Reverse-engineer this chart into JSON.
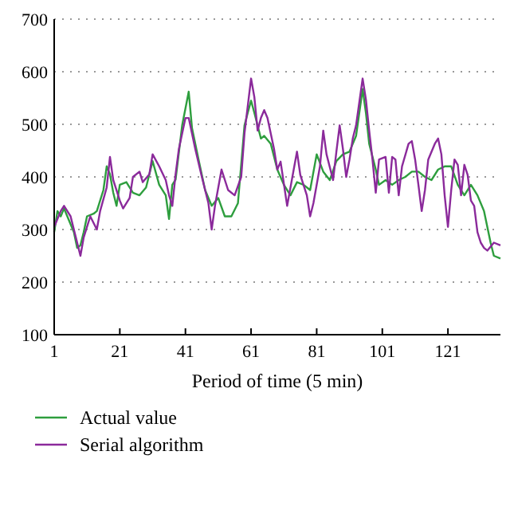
{
  "chart_data": {
    "type": "line",
    "xlabel": "Period of time (5 min)",
    "xlim": [
      1,
      137
    ],
    "xticks": [
      1,
      21,
      41,
      61,
      81,
      101,
      121
    ],
    "ylim": [
      100,
      700
    ],
    "yticks": [
      100,
      200,
      300,
      400,
      500,
      600,
      700
    ],
    "grid": "y",
    "legend": "bottom",
    "series": [
      {
        "name": "Actual value",
        "color": "#2e9e3e",
        "x": [
          1,
          2,
          3,
          4,
          5,
          7,
          8,
          9,
          10,
          11,
          13,
          14,
          16,
          17,
          18,
          19,
          20,
          21,
          23,
          25,
          27,
          29,
          31,
          33,
          35,
          36,
          37,
          38,
          40,
          42,
          43,
          45,
          47,
          49,
          51,
          53,
          55,
          57,
          59,
          60,
          61,
          62,
          64,
          65,
          67,
          69,
          71,
          73,
          75,
          77,
          79,
          81,
          83,
          85,
          87,
          89,
          91,
          93,
          95,
          96,
          97,
          99,
          100,
          102,
          104,
          106,
          108,
          110,
          112,
          114,
          116,
          118,
          120,
          122,
          124,
          126,
          128,
          130,
          132,
          134,
          135,
          137
        ],
        "values": [
          295,
          335,
          325,
          340,
          325,
          295,
          265,
          270,
          295,
          325,
          330,
          335,
          375,
          420,
          405,
          370,
          345,
          385,
          390,
          370,
          365,
          380,
          430,
          385,
          365,
          320,
          385,
          395,
          498,
          562,
          493,
          433,
          375,
          345,
          360,
          325,
          325,
          350,
          498,
          522,
          545,
          522,
          473,
          478,
          463,
          414,
          385,
          365,
          390,
          385,
          375,
          443,
          410,
          394,
          430,
          443,
          448,
          478,
          567,
          522,
          463,
          414,
          385,
          394,
          385,
          394,
          400,
          410,
          410,
          400,
          394,
          414,
          420,
          420,
          385,
          365,
          385,
          365,
          335,
          275,
          250,
          245
        ]
      },
      {
        "name": "Serial algorithm",
        "color": "#8b2a9b",
        "x": [
          1,
          3,
          4,
          6,
          8,
          9,
          10,
          12,
          14,
          15,
          17,
          18,
          19,
          21,
          22,
          24,
          25,
          27,
          28,
          30,
          31,
          33,
          35,
          36,
          37,
          38,
          39,
          41,
          42,
          44,
          46,
          48,
          49,
          50,
          52,
          54,
          56,
          58,
          59,
          61,
          62,
          63,
          64,
          65,
          66,
          68,
          69,
          70,
          72,
          74,
          75,
          76,
          78,
          79,
          80,
          82,
          83,
          84,
          86,
          87,
          88,
          89,
          90,
          91,
          92,
          93,
          95,
          96,
          97,
          98,
          99,
          100,
          102,
          103,
          104,
          105,
          106,
          107,
          109,
          110,
          111,
          112,
          113,
          114,
          115,
          117,
          118,
          119,
          120,
          121,
          122,
          123,
          124,
          125,
          126,
          127,
          128,
          129,
          130,
          131,
          132,
          133,
          135,
          137
        ],
        "values": [
          305,
          335,
          345,
          325,
          275,
          250,
          285,
          325,
          300,
          335,
          380,
          438,
          394,
          355,
          340,
          360,
          400,
          410,
          390,
          405,
          443,
          420,
          394,
          365,
          345,
          405,
          453,
          512,
          512,
          453,
          400,
          350,
          300,
          345,
          414,
          375,
          365,
          400,
          483,
          587,
          552,
          488,
          512,
          527,
          512,
          453,
          414,
          429,
          345,
          414,
          448,
          404,
          365,
          325,
          350,
          420,
          488,
          443,
          394,
          448,
          498,
          453,
          400,
          433,
          473,
          498,
          587,
          547,
          488,
          433,
          370,
          433,
          438,
          370,
          438,
          433,
          365,
          420,
          463,
          468,
          433,
          385,
          335,
          375,
          433,
          463,
          473,
          443,
          365,
          305,
          375,
          433,
          423,
          365,
          423,
          404,
          355,
          345,
          295,
          275,
          265,
          260,
          275,
          270
        ]
      }
    ]
  }
}
